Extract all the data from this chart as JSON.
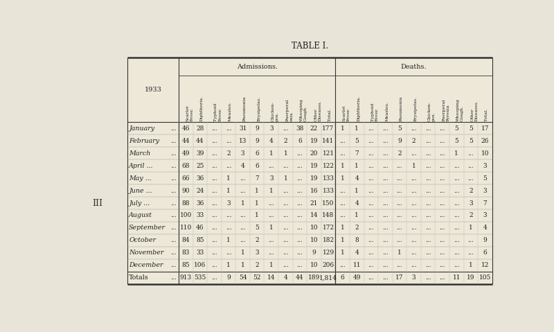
{
  "title": "TABLE I.",
  "bg_color": "#e8e4d8",
  "table_bg": "#e8e4d8",
  "year": "1933",
  "admissions_label": "Admissions.",
  "deaths_label": "Deaths.",
  "col_headers_admissions": [
    "Scarlet\nFever.",
    "Diphtheria.",
    "Typhoid\nFever.",
    "Measles.",
    "Pneumonia",
    "Erysipelas.",
    "Chicken-\npox.",
    "Puerperal\nexia",
    "Whooping\nCough.",
    "Other\nDiseases.",
    "Total."
  ],
  "col_headers_deaths": [
    "Scarlet\nFever.",
    "Diphtheria.",
    "Typhoid\nFever.",
    "Measles.",
    "Pneumonia",
    "Erysipelas.",
    "Chicken-\npox.",
    "Puerperal\nPyrexia",
    "Whooping\nCough.",
    "Other\nDiseases.",
    "Total."
  ],
  "months": [
    "January",
    "February",
    "March",
    "April ...",
    "May ...",
    "June ...",
    "July ...",
    "August",
    "September",
    "October",
    "November",
    "December",
    "Totals"
  ],
  "admissions": [
    [
      46,
      28,
      "...",
      "...",
      31,
      9,
      3,
      "...",
      38,
      22,
      177
    ],
    [
      44,
      44,
      "...",
      "...",
      13,
      9,
      4,
      2,
      6,
      19,
      141
    ],
    [
      49,
      39,
      "...",
      2,
      3,
      6,
      1,
      1,
      "...",
      20,
      121
    ],
    [
      68,
      25,
      "...",
      "...",
      4,
      6,
      "...",
      "...",
      "...",
      19,
      122
    ],
    [
      66,
      36,
      "...",
      1,
      "...",
      7,
      3,
      1,
      "...",
      19,
      133
    ],
    [
      90,
      24,
      "...",
      1,
      "...",
      1,
      1,
      "...",
      "...",
      16,
      133
    ],
    [
      88,
      36,
      "...",
      3,
      1,
      1,
      "...",
      "...",
      "...",
      21,
      150
    ],
    [
      100,
      33,
      "...",
      "...",
      "...",
      1,
      "...",
      "...",
      "...",
      14,
      148
    ],
    [
      110,
      46,
      "...",
      "...",
      "...",
      5,
      1,
      "...",
      "...",
      10,
      172
    ],
    [
      84,
      85,
      "...",
      1,
      "...",
      2,
      "...",
      "...",
      "...",
      10,
      182
    ],
    [
      83,
      33,
      "...",
      "...",
      1,
      3,
      "...",
      "...",
      "...",
      9,
      129
    ],
    [
      85,
      106,
      "...",
      1,
      1,
      2,
      1,
      "...",
      "...",
      10,
      206
    ],
    [
      913,
      535,
      "...",
      9,
      54,
      52,
      14,
      4,
      44,
      189,
      "1,814"
    ]
  ],
  "deaths": [
    [
      1,
      1,
      "...",
      "...",
      5,
      "...",
      "...",
      "...",
      5,
      5,
      17
    ],
    [
      "...",
      5,
      "...",
      "...",
      9,
      2,
      "...",
      "...",
      5,
      5,
      26
    ],
    [
      "...",
      7,
      "...",
      "...",
      2,
      "...",
      "...",
      "...",
      1,
      "...",
      10
    ],
    [
      1,
      1,
      "...",
      "...",
      "...",
      1,
      "...",
      "...",
      "...",
      "...",
      3
    ],
    [
      1,
      4,
      "...",
      "...",
      "...",
      "...",
      "...",
      "...",
      "...",
      "...",
      5
    ],
    [
      "...",
      1,
      "...",
      "...",
      "...",
      "...",
      "...",
      "...",
      "...",
      2,
      3
    ],
    [
      "...",
      4,
      "...",
      "...",
      "...",
      "...",
      "...",
      "...",
      "...",
      3,
      7
    ],
    [
      "...",
      1,
      "...",
      "...",
      "...",
      "...",
      "...",
      "...",
      "...",
      2,
      3
    ],
    [
      1,
      2,
      "...",
      "...",
      "...",
      "...",
      "...",
      "...",
      "...",
      1,
      4
    ],
    [
      1,
      8,
      "...",
      "...",
      "...",
      "...",
      "...",
      "...",
      "...",
      "...",
      9
    ],
    [
      1,
      4,
      "...",
      "...",
      1,
      "...",
      "...",
      "...",
      "...",
      "...",
      6
    ],
    [
      "...",
      11,
      "...",
      "...",
      "...",
      "...",
      "...",
      "...",
      "...",
      1,
      12
    ],
    [
      6,
      49,
      "...",
      "...",
      17,
      3,
      "...",
      "...",
      11,
      19,
      105
    ]
  ],
  "iii_marker": "III"
}
